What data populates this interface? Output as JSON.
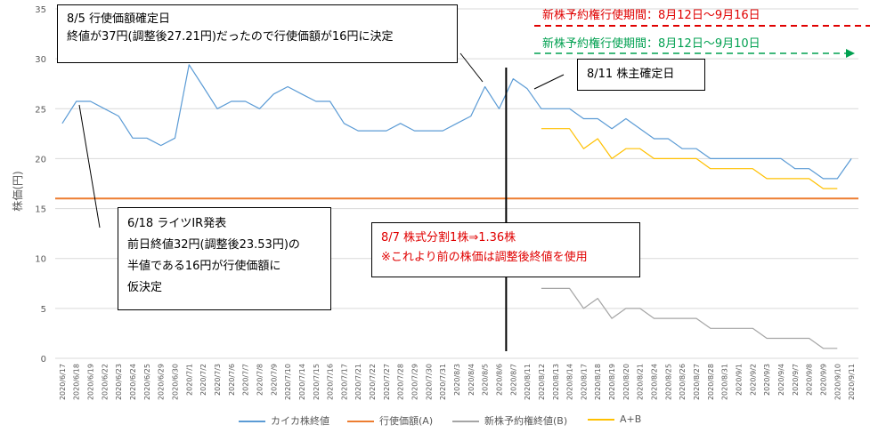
{
  "chart_data": {
    "type": "line",
    "title": "",
    "ylabel": "株価(円)",
    "ylim": [
      0,
      35
    ],
    "yticks": [
      0,
      5,
      10,
      15,
      20,
      25,
      30,
      35
    ],
    "grid": "horizontal",
    "legend_position": "bottom",
    "x": [
      "2020/6/17",
      "2020/6/18",
      "2020/6/19",
      "2020/6/22",
      "2020/6/23",
      "2020/6/24",
      "2020/6/25",
      "2020/6/29",
      "2020/6/30",
      "2020/7/1",
      "2020/7/2",
      "2020/7/3",
      "2020/7/6",
      "2020/7/7",
      "2020/7/8",
      "2020/7/9",
      "2020/7/10",
      "2020/7/14",
      "2020/7/15",
      "2020/7/16",
      "2020/7/17",
      "2020/7/21",
      "2020/7/22",
      "2020/7/27",
      "2020/7/28",
      "2020/7/29",
      "2020/7/30",
      "2020/7/31",
      "2020/8/3",
      "2020/8/4",
      "2020/8/5",
      "2020/8/6",
      "2020/8/7",
      "2020/8/11",
      "2020/8/12",
      "2020/8/13",
      "2020/8/14",
      "2020/8/17",
      "2020/8/18",
      "2020/8/19",
      "2020/8/20",
      "2020/8/21",
      "2020/8/24",
      "2020/8/25",
      "2020/8/26",
      "2020/8/27",
      "2020/8/28",
      "2020/8/31",
      "2020/9/1",
      "2020/9/2",
      "2020/9/3",
      "2020/9/4",
      "2020/9/7",
      "2020/9/8",
      "2020/9/9",
      "2020/9/10",
      "2020/9/11"
    ],
    "series": [
      {
        "name": "カイカ株終値",
        "color": "#5b9bd5",
        "values": [
          23.53,
          25.74,
          25.74,
          25.0,
          24.26,
          22.06,
          22.06,
          21.32,
          22.06,
          29.41,
          27.21,
          25.0,
          25.74,
          25.74,
          25.0,
          26.47,
          27.21,
          26.47,
          25.74,
          25.74,
          23.53,
          22.79,
          22.79,
          22.79,
          23.53,
          22.79,
          22.79,
          22.79,
          23.53,
          24.26,
          27.21,
          25.0,
          28.0,
          27.0,
          25.0,
          25.0,
          25.0,
          24.0,
          24.0,
          23.0,
          24.0,
          23.0,
          22.0,
          22.0,
          21.0,
          21.0,
          20.0,
          20.0,
          20.0,
          20.0,
          20.0,
          20.0,
          19.0,
          19.0,
          18.0,
          18.0,
          20.0
        ]
      },
      {
        "name": "行使価額(A)",
        "color": "#ed7d31",
        "values": [
          16,
          16,
          16,
          16,
          16,
          16,
          16,
          16,
          16,
          16,
          16,
          16,
          16,
          16,
          16,
          16,
          16,
          16,
          16,
          16,
          16,
          16,
          16,
          16,
          16,
          16,
          16,
          16,
          16,
          16,
          16,
          16,
          16,
          16,
          16,
          16,
          16,
          16,
          16,
          16,
          16,
          16,
          16,
          16,
          16,
          16,
          16,
          16,
          16,
          16,
          16,
          16,
          16,
          16,
          16,
          16,
          16
        ]
      },
      {
        "name": "新株予約権終値(B)",
        "color": "#a5a5a5",
        "values": [
          null,
          null,
          null,
          null,
          null,
          null,
          null,
          null,
          null,
          null,
          null,
          null,
          null,
          null,
          null,
          null,
          null,
          null,
          null,
          null,
          null,
          null,
          null,
          null,
          null,
          null,
          null,
          null,
          null,
          null,
          null,
          null,
          null,
          null,
          7,
          7,
          7,
          5,
          6,
          4,
          5,
          5,
          4,
          4,
          4,
          4,
          3,
          3,
          3,
          3,
          2,
          2,
          2,
          2,
          1,
          1,
          null
        ]
      },
      {
        "name": "A+B",
        "color": "#ffc000",
        "values": [
          null,
          null,
          null,
          null,
          null,
          null,
          null,
          null,
          null,
          null,
          null,
          null,
          null,
          null,
          null,
          null,
          null,
          null,
          null,
          null,
          null,
          null,
          null,
          null,
          null,
          null,
          null,
          null,
          null,
          null,
          null,
          null,
          null,
          null,
          23,
          23,
          23,
          21,
          22,
          20,
          21,
          21,
          20,
          20,
          20,
          20,
          19,
          19,
          19,
          19,
          18,
          18,
          18,
          18,
          17,
          17,
          null
        ]
      }
    ],
    "annotations": {
      "aug5": {
        "l1": "8/5 行使価額確定日",
        "l2": "終値が37円(調整後27.21円)だったので行使価額が16円に決定"
      },
      "aug11": {
        "l1": "8/11 株主確定日"
      },
      "jun18": {
        "l1": "6/18 ライツIR発表",
        "l2": "前日終値32円(調整後23.53円)の",
        "l3": "半値である16円が行使価額に",
        "l4": "仮決定"
      },
      "aug7": {
        "l1": "8/7 株式分割1株⇒1.36株",
        "l2": "※これより前の株価は調整後終値を使用"
      },
      "period_red": "新株予約権行使期間：8月12日～9月16日",
      "period_green": "新株予約権行使期間：8月12日～9月10日"
    },
    "vertical_marker_at": "2020/8/7"
  }
}
